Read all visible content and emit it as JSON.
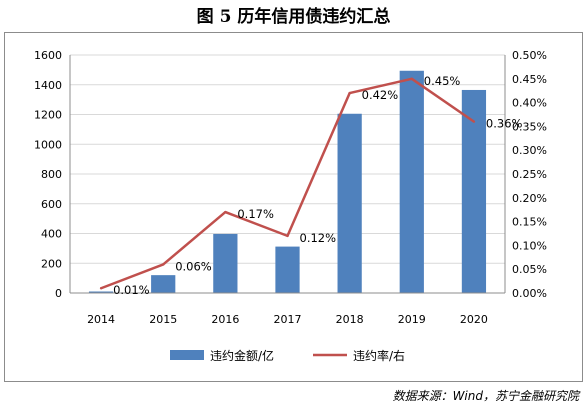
{
  "title": "图 5  历年信用债违约汇总",
  "source": "数据来源：Wind，苏宁金融研究院",
  "colors": {
    "bar": "#4f81bd",
    "line": "#c0504d",
    "grid": "#d9d9d9"
  },
  "chart_data": {
    "type": "bar",
    "categories": [
      "2014",
      "2015",
      "2016",
      "2017",
      "2018",
      "2019",
      "2020"
    ],
    "series": [
      {
        "name": "违约金额/亿",
        "type": "bar",
        "axis": "left",
        "values": [
          10,
          120,
          397,
          312,
          1205,
          1494,
          1365
        ]
      },
      {
        "name": "违约率/右",
        "type": "line",
        "axis": "right",
        "values": [
          0.01,
          0.06,
          0.17,
          0.12,
          0.42,
          0.45,
          0.36
        ]
      }
    ],
    "point_labels": [
      "0.01%",
      "0.06%",
      "0.17%",
      "0.12%",
      "0.42%",
      "0.45%",
      "0.36%"
    ],
    "ylim_left": [
      0,
      1600
    ],
    "yticks_left": [
      "0",
      "200",
      "400",
      "600",
      "800",
      "1000",
      "1200",
      "1400",
      "1600"
    ],
    "ylim_right": [
      0,
      0.5
    ],
    "yticks_right": [
      "0.00%",
      "0.05%",
      "0.10%",
      "0.15%",
      "0.20%",
      "0.25%",
      "0.30%",
      "0.35%",
      "0.40%",
      "0.45%",
      "0.50%"
    ],
    "grid": true,
    "legend": "bottom"
  }
}
